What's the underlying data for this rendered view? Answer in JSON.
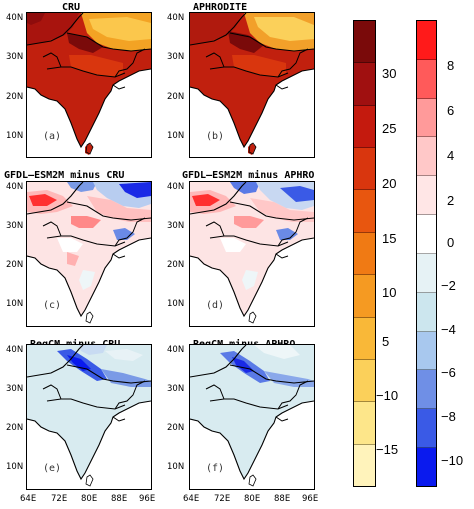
{
  "titles": {
    "a": "CRU",
    "b": "APHRODITE",
    "c": "GFDL–ESM2M minus CRU",
    "d": "GFDL–ESM2M minus APHRO",
    "e": "RegCM minus CRU",
    "f": "RegCM minus APHRO"
  },
  "panel_tags": [
    "(a)",
    "(b)",
    "(c)",
    "(d)",
    "(e)",
    "(f)"
  ],
  "lat_ticks": [
    "40N",
    "30N",
    "20N",
    "10N"
  ],
  "lon_ticks": [
    "64E",
    "72E",
    "80E",
    "88E",
    "96E"
  ],
  "colorbar_abs": {
    "ticks": [
      "30",
      "25",
      "20",
      "15",
      "10",
      "5",
      "−10",
      "−15"
    ],
    "colors": [
      "#7a0a0a",
      "#a01010",
      "#c41a0e",
      "#d9360e",
      "#e8560f",
      "#f07a14",
      "#f59a22",
      "#f9b838",
      "#fbd05a",
      "#fde68a",
      "#fff3bb"
    ]
  },
  "colorbar_diff": {
    "ticks": [
      "8",
      "6",
      "4",
      "2",
      "0",
      "−2",
      "−4",
      "−6",
      "−8",
      "−10"
    ],
    "colors": [
      "#ff1a1a",
      "#ff5a5a",
      "#ff9a9a",
      "#ffc8c8",
      "#ffe6e6",
      "#ffffff",
      "#e6f2f5",
      "#cce6ee",
      "#a8c8ee",
      "#6f8fe6",
      "#3a5ae6",
      "#0a1aee"
    ]
  }
}
